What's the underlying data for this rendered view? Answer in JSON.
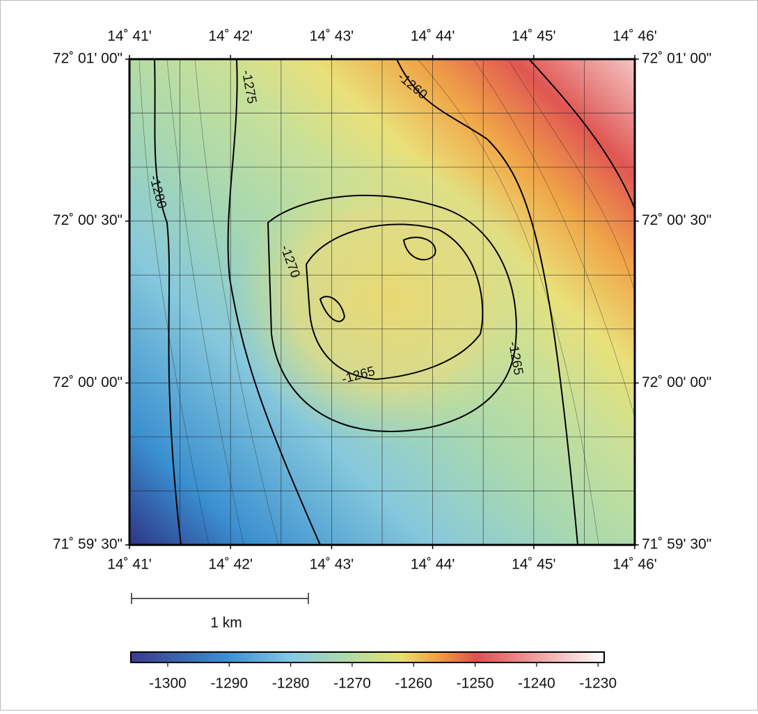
{
  "map": {
    "lon_ticks": [
      {
        "value": 14.683333,
        "label": "14˚ 41'"
      },
      {
        "value": 14.7,
        "label": "14˚ 42'"
      },
      {
        "value": 14.716667,
        "label": "14˚ 43'"
      },
      {
        "value": 14.733333,
        "label": "14˚ 44'"
      },
      {
        "value": 14.75,
        "label": "14˚ 45'"
      },
      {
        "value": 14.766667,
        "label": "14˚ 46'"
      }
    ],
    "xlim": [
      14.683333,
      14.766667
    ],
    "lat_ticks": [
      {
        "value": 72.016667,
        "label": "72˚ 01' 00\""
      },
      {
        "value": 72.008333,
        "label": "72˚ 00' 30\""
      },
      {
        "value": 72.0,
        "label": "72˚ 00' 00\""
      },
      {
        "value": 71.991667,
        "label": "71˚ 59' 30\""
      }
    ],
    "ylim": [
      71.991667,
      72.016667
    ],
    "contour_labels": [
      -1275,
      -1280,
      -1260,
      -1270,
      -1265,
      -1265
    ],
    "scale_bar": "1 km",
    "colorbar": {
      "lim": [
        -1306,
        -1229
      ],
      "ticks": [
        -1300,
        -1290,
        -1280,
        -1270,
        -1260,
        -1250,
        -1240,
        -1230
      ]
    }
  }
}
